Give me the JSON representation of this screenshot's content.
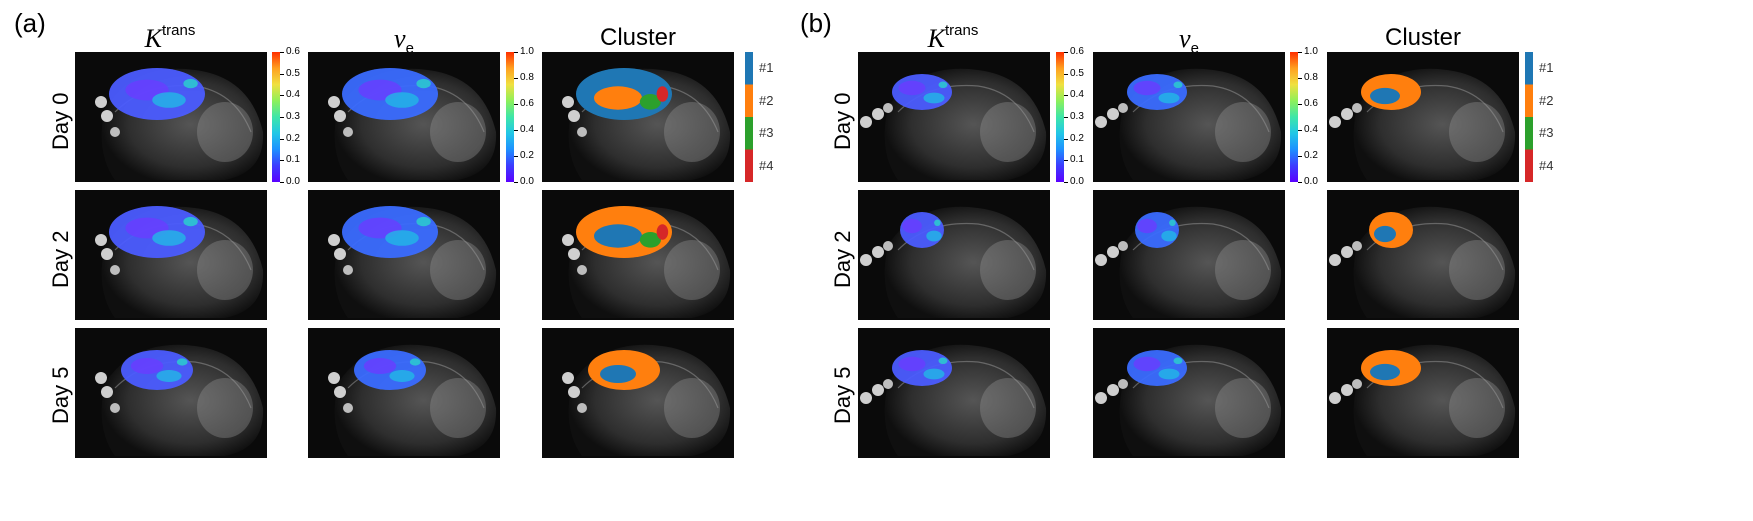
{
  "panels": [
    {
      "label": "(a)",
      "columns": [
        {
          "prefix": "K",
          "sup": "trans",
          "sub": "",
          "plain": ""
        },
        {
          "prefix": "v",
          "sup": "",
          "sub": "e",
          "plain": ""
        },
        {
          "prefix": "",
          "sup": "",
          "sub": "",
          "plain": "Cluster"
        }
      ],
      "rows": [
        "Day 0",
        "Day 2",
        "Day 5"
      ]
    },
    {
      "label": "(b)",
      "columns": [
        {
          "prefix": "K",
          "sup": "trans",
          "sub": "",
          "plain": ""
        },
        {
          "prefix": "v",
          "sup": "",
          "sub": "e",
          "plain": ""
        },
        {
          "prefix": "",
          "sup": "",
          "sub": "",
          "plain": "Cluster"
        }
      ],
      "rows": [
        "Day 0",
        "Day 2",
        "Day 5"
      ]
    }
  ],
  "colorbars": {
    "ktrans": {
      "ticks": [
        "0.6",
        "0.5",
        "0.4",
        "0.3",
        "0.2",
        "0.1",
        "0.0"
      ]
    },
    "ve": {
      "ticks": [
        "1.0",
        "0.8",
        "0.6",
        "0.4",
        "0.2",
        "0.0"
      ]
    },
    "cluster": {
      "labels": [
        "#1",
        "#2",
        "#3",
        "#4"
      ],
      "colors": [
        "#1f77b4",
        "#ff7f0e",
        "#2ca02c",
        "#d62728"
      ]
    }
  },
  "colors": {
    "colormap": [
      "#5a00ff",
      "#3c3cff",
      "#1e90ff",
      "#22c7e6",
      "#3ee6a8",
      "#8ef05a",
      "#f0e040",
      "#ffa020",
      "#ff3000"
    ],
    "background": "#ffffff",
    "scan_bg": "#0a0a0a"
  }
}
